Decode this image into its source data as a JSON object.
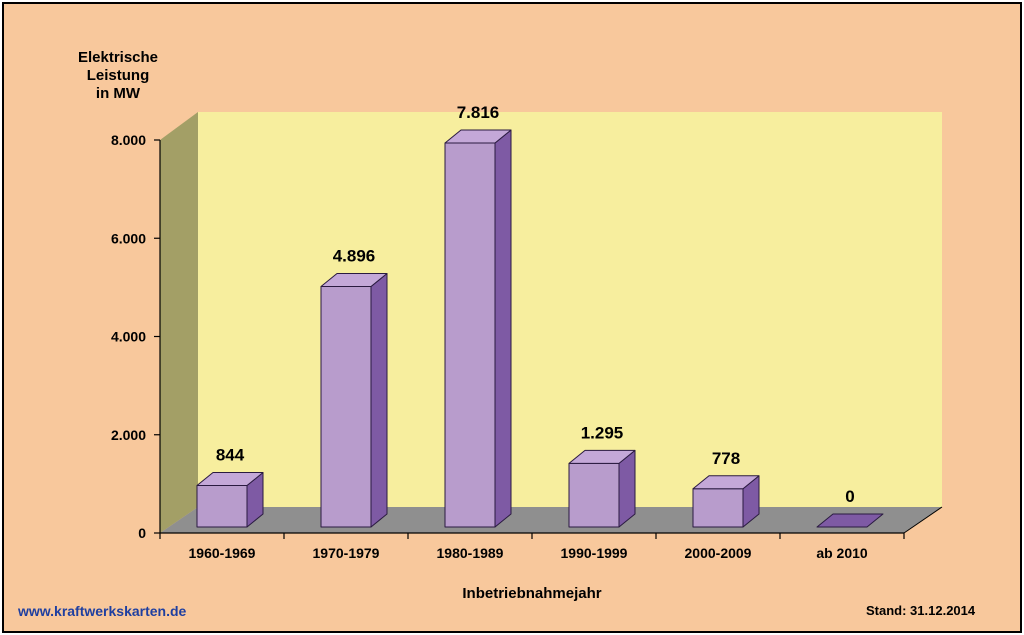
{
  "chart_data": {
    "type": "bar",
    "title": "",
    "ylabel_lines": [
      "Elektrische",
      "Leistung",
      "in MW"
    ],
    "xlabel": "Inbetriebnahmejahr",
    "categories": [
      "1960-1969",
      "1970-1979",
      "1980-1989",
      "1990-1999",
      "2000-2009",
      "ab 2010"
    ],
    "values": [
      844,
      4896,
      7816,
      1295,
      778,
      0
    ],
    "value_labels": [
      "844",
      "4.896",
      "7.816",
      "1.295",
      "778",
      "0"
    ],
    "ylim": [
      0,
      8000
    ],
    "y_ticks": [
      0,
      2000,
      4000,
      6000,
      8000
    ],
    "y_tick_labels": [
      "0",
      "2.000",
      "4.000",
      "6.000",
      "8.000"
    ],
    "grid": false,
    "legend": "none",
    "three_d": true
  },
  "colors": {
    "background": "#f8c89c",
    "back_wall": "#f7ee9e",
    "side_wall": "#a39f66",
    "floor": "#8f8f8f",
    "bar_front": "#b89ccc",
    "bar_top": "#c4a8d8",
    "bar_side": "#7e5aa4",
    "bar_edge": "#2a1a40",
    "website": "#1f3fa0"
  },
  "footer": {
    "website": "www.kraftwerkskarten.de",
    "stand": "Stand: 31.12.2014"
  }
}
